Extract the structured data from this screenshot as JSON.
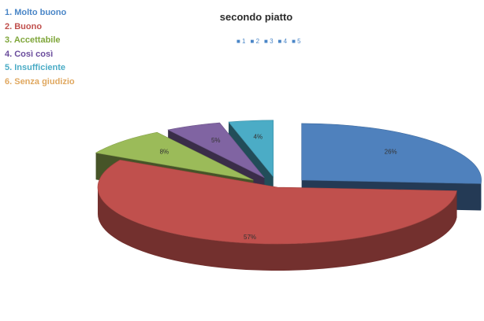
{
  "legend_items": [
    {
      "label": "1. Molto buono",
      "color": "#4a86c7"
    },
    {
      "label": "2. Buono",
      "color": "#c0504d"
    },
    {
      "label": "3. Accettabile",
      "color": "#7fa63a"
    },
    {
      "label": "4. Così così",
      "color": "#6a4c9c"
    },
    {
      "label": "5. Insufficiente",
      "color": "#4bacc6"
    },
    {
      "label": "6. Senza giudizio",
      "color": "#e0a860"
    }
  ],
  "series_legend": [
    "■ 1",
    "■ 2",
    "■ 3",
    "■ 4",
    "■ 5"
  ],
  "chart_data": {
    "type": "pie",
    "title": "secondo piatto",
    "slices": [
      {
        "category": "1",
        "value": 26,
        "label": "26%",
        "color": "#4f81bd",
        "exploded": true
      },
      {
        "category": "2",
        "value": 57,
        "label": "57%",
        "color": "#c0504d",
        "exploded": false
      },
      {
        "category": "3",
        "value": 8,
        "label": "8%",
        "color": "#9bbb59",
        "exploded": true
      },
      {
        "category": "4",
        "value": 5,
        "label": "5%",
        "color": "#8064a2",
        "exploded": true
      },
      {
        "category": "5",
        "value": 4,
        "label": "4%",
        "color": "#4bacc6",
        "exploded": true
      }
    ]
  }
}
